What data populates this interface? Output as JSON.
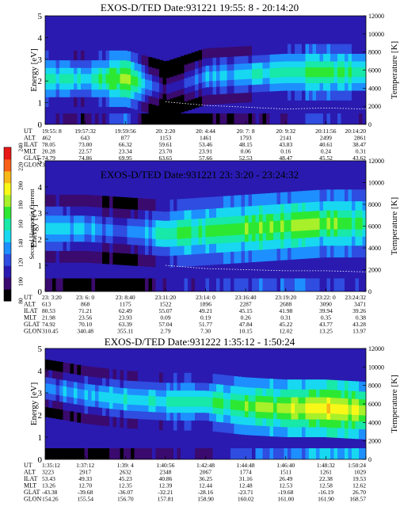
{
  "colorbar": {
    "label": "Second Harmonic Current",
    "ticks": [
      "80",
      "100",
      "120",
      "140",
      "160",
      "180",
      "200",
      "220",
      "240"
    ],
    "colors": [
      "#000000",
      "#3a0a6e",
      "#2a1ab0",
      "#2f4de0",
      "#1e8fff",
      "#17d8f0",
      "#18e8a8",
      "#2de832",
      "#a8f02a",
      "#f8f818",
      "#f8b818",
      "#f86018",
      "#e81818"
    ]
  },
  "panels": [
    {
      "title": "EXOS-D/TED",
      "date": "Date:931221",
      "time_range": "19:55: 8 - 20:14:20",
      "left_axis": {
        "label": "Energy [eV]",
        "ticks": [
          "0",
          "1",
          "2",
          "3",
          "4",
          "5"
        ],
        "range": [
          0,
          5
        ]
      },
      "right_axis": {
        "label": "Temperature [K]",
        "ticks": [
          "0",
          "2000",
          "4000",
          "6000",
          "8000",
          "10000",
          "12000"
        ],
        "range": [
          0,
          12000
        ]
      },
      "rows": [
        {
          "label": "UT",
          "values": [
            "19:55: 8",
            "19:57:32",
            "19:59:56",
            "20: 2:20",
            "20: 4:44",
            "20: 7: 8",
            "20: 9:32",
            "20:11:56",
            "20:14:20"
          ]
        },
        {
          "label": "ALT",
          "values": [
            "462",
            "643",
            "877",
            "1153",
            "1461",
            "1793",
            "2141",
            "2499",
            "2861"
          ]
        },
        {
          "label": "ILAT",
          "values": [
            "78.05",
            "73.00",
            "66.32",
            "59.61",
            "53.46",
            "48.15",
            "43.83",
            "40.61",
            "38.47"
          ]
        },
        {
          "label": "MLT",
          "values": [
            "20.28",
            "22.57",
            "23.34",
            "23.70",
            "23.91",
            "0.06",
            "0.16",
            "0.24",
            "0.31"
          ]
        },
        {
          "label": "GLAT",
          "values": [
            "74.79",
            "74.86",
            "69.95",
            "63.65",
            "57.66",
            "52.53",
            "48.47",
            "45.52",
            "43.62"
          ]
        },
        {
          "label": "GLON",
          "values": [
            "324.66",
            "3.63",
            "29.78",
            "43.00",
            "50.19",
            "54.52",
            "57.35",
            "59.30",
            "60.68"
          ]
        }
      ]
    },
    {
      "title": "EXOS-D/TED",
      "date": "Date:931221",
      "time_range": "23: 3:20 - 23:24:32",
      "left_axis": {
        "label": "Energy [eV]",
        "ticks": [
          "0",
          "1",
          "2",
          "3",
          "4",
          "5"
        ],
        "range": [
          0,
          5
        ]
      },
      "right_axis": {
        "label": "Temperature [K]",
        "ticks": [
          "0",
          "2000",
          "4000",
          "6000",
          "8000",
          "10000",
          "12000"
        ],
        "range": [
          0,
          12000
        ]
      },
      "rows": [
        {
          "label": "UT",
          "values": [
            "23: 3:20",
            "23: 6: 0",
            "23: 8:40",
            "23:11:20",
            "23:14: 0",
            "23:16:40",
            "23:19:20",
            "23:22: 0",
            "23:24:32"
          ]
        },
        {
          "label": "ALT",
          "values": [
            "613",
            "868",
            "1175",
            "1522",
            "1896",
            "2287",
            "2688",
            "3090",
            "3471"
          ]
        },
        {
          "label": "ILAT",
          "values": [
            "80.53",
            "71.21",
            "62.49",
            "55.07",
            "49.21",
            "45.15",
            "41.98",
            "39.94",
            "39.26"
          ]
        },
        {
          "label": "MLT",
          "values": [
            "21.98",
            "23.56",
            "23.93",
            "0.09",
            "0.19",
            "0.26",
            "0.31",
            "0.35",
            "0.38"
          ]
        },
        {
          "label": "GLAT",
          "values": [
            "74.92",
            "70.10",
            "63.39",
            "57.04",
            "51.77",
            "47.84",
            "45.22",
            "43.77",
            "43.28"
          ]
        },
        {
          "label": "GLON",
          "values": [
            "310.45",
            "340.48",
            "355.11",
            "2.79",
            "7.30",
            "10.15",
            "12.02",
            "13.25",
            "13.97"
          ]
        }
      ]
    },
    {
      "title": "EXOS-D/TED",
      "date": "Date:931222",
      "time_range": "1:35:12 - 1:50:24",
      "left_axis": {
        "label": "Energy [eV]",
        "ticks": [
          "0",
          "1",
          "2",
          "3",
          "4",
          "5"
        ],
        "range": [
          0,
          5
        ]
      },
      "right_axis": {
        "label": "Temperature [K]",
        "ticks": [
          "0",
          "2000",
          "4000",
          "6000",
          "8000",
          "10000",
          "12000"
        ],
        "range": [
          0,
          12000
        ]
      },
      "rows": [
        {
          "label": "UT",
          "values": [
            "1:35:12",
            "1:37:12",
            "1:39: 4",
            "1:40:56",
            "1:42:48",
            "1:44:48",
            "1:46:40",
            "1:48:32",
            "1:50:24"
          ]
        },
        {
          "label": "ALT",
          "values": [
            "3223",
            "2917",
            "2632",
            "2348",
            "2067",
            "1774",
            "1511",
            "1261",
            "1029"
          ]
        },
        {
          "label": "ILAT",
          "values": [
            "53.43",
            "49.33",
            "45.23",
            "40.86",
            "36.25",
            "31.16",
            "26.49",
            "22.38",
            "19.53"
          ]
        },
        {
          "label": "MLT",
          "values": [
            "13.26",
            "12.70",
            "12.35",
            "12.39",
            "12.44",
            "12.48",
            "12.53",
            "12.58",
            "12.62"
          ]
        },
        {
          "label": "GLAT",
          "values": [
            "-43.38",
            "-39.68",
            "-36.07",
            "-32.21",
            "-28.16",
            "-23.71",
            "-19.68",
            "-16.19",
            "26.70"
          ]
        },
        {
          "label": "GLON",
          "values": [
            "154.26",
            "155.54",
            "156.70",
            "157.81",
            "158.90",
            "160.02",
            "161.00",
            "161.90",
            "168.57"
          ]
        }
      ]
    }
  ],
  "chart_data": [
    {
      "type": "heatmap",
      "title": "EXOS-D/TED Date:931221 19:55: 8 - 20:14:20",
      "xlabel": "UT",
      "ylabel": "Energy [eV]",
      "y2label": "Temperature [K]",
      "ylim": [
        0,
        5
      ],
      "y2lim": [
        0,
        12000
      ],
      "colorbar_label": "Second Harmonic Current",
      "colorbar_range": [
        80,
        240
      ],
      "x": [
        "19:55: 8",
        "19:57:32",
        "19:59:56",
        "20: 2:20",
        "20: 4:44",
        "20: 7: 8",
        "20: 9:32",
        "20:11:56",
        "20:14:20"
      ],
      "band_center_ev": [
        2.1,
        2.1,
        2.1,
        1.6,
        2.2,
        2.3,
        2.4,
        2.4,
        2.4
      ],
      "band_intensity": [
        160,
        150,
        185,
        100,
        140,
        150,
        160,
        175,
        160
      ],
      "temperature_k": [
        null,
        null,
        null,
        2500,
        2100,
        1900,
        1700,
        1800,
        1700
      ]
    },
    {
      "type": "heatmap",
      "title": "EXOS-D/TED Date:931221 23: 3:20 - 23:24:32",
      "xlabel": "UT",
      "ylabel": "Energy [eV]",
      "y2label": "Temperature [K]",
      "ylim": [
        0,
        5
      ],
      "y2lim": [
        0,
        12000
      ],
      "colorbar_label": "Second Harmonic Current",
      "colorbar_range": [
        80,
        240
      ],
      "x": [
        "23: 3:20",
        "23: 6: 0",
        "23: 8:40",
        "23:11:20",
        "23:14: 0",
        "23:16:40",
        "23:19:20",
        "23:22: 0",
        "23:24:32"
      ],
      "band_center_ev": [
        2.4,
        2.4,
        2.3,
        2.2,
        2.3,
        2.4,
        2.5,
        2.6,
        2.6
      ],
      "band_intensity": [
        150,
        140,
        125,
        160,
        170,
        175,
        180,
        175,
        170
      ],
      "temperature_k": [
        null,
        null,
        null,
        2400,
        2100,
        2000,
        1900,
        1900,
        1800
      ]
    },
    {
      "type": "heatmap",
      "title": "EXOS-D/TED Date:931222 1:35:12 - 1:50:24",
      "xlabel": "UT",
      "ylabel": "Energy [eV]",
      "y2label": "Temperature [K]",
      "ylim": [
        0,
        5
      ],
      "y2lim": [
        0,
        12000
      ],
      "colorbar_label": "Second Harmonic Current",
      "colorbar_range": [
        80,
        240
      ],
      "x": [
        "1:35:12",
        "1:37:12",
        "1:39: 4",
        "1:40:56",
        "1:42:48",
        "1:44:48",
        "1:46:40",
        "1:48:32",
        "1:50:24"
      ],
      "band_center_ev": [
        3.2,
        2.9,
        2.7,
        2.6,
        2.6,
        2.4,
        2.3,
        2.3,
        2.2
      ],
      "band_intensity": [
        130,
        145,
        150,
        155,
        160,
        175,
        185,
        200,
        190
      ],
      "temperature_k": [
        null,
        null,
        null,
        null,
        null,
        null,
        null,
        null,
        null
      ]
    }
  ]
}
